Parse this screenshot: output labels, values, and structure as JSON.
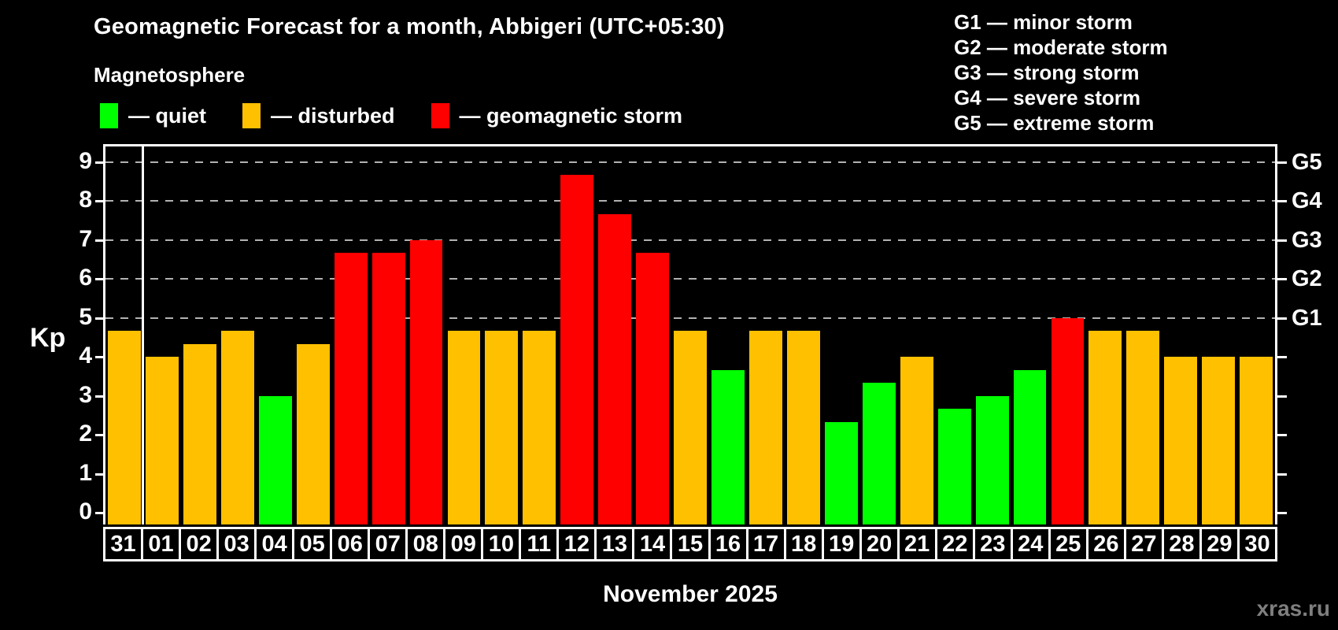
{
  "title": "Geomagnetic Forecast for a month, Abbigeri (UTC+05:30)",
  "subtitle": "Magnetosphere",
  "legend": {
    "items": [
      {
        "label": "— quiet",
        "status": "quiet"
      },
      {
        "label": "— disturbed",
        "status": "disturbed"
      },
      {
        "label": "— geomagnetic storm",
        "status": "storm"
      }
    ]
  },
  "g_legend": [
    "G1 — minor storm",
    "G2 — moderate storm",
    "G3 — strong storm",
    "G4 — severe storm",
    "G5 — extreme storm"
  ],
  "axes": {
    "y_label": "Kp",
    "y_ticks": [
      0,
      1,
      2,
      3,
      4,
      5,
      6,
      7,
      8,
      9
    ],
    "right_labels": [
      {
        "label": "G1",
        "kp": 5
      },
      {
        "label": "G2",
        "kp": 6
      },
      {
        "label": "G3",
        "kp": 7
      },
      {
        "label": "G4",
        "kp": 8
      },
      {
        "label": "G5",
        "kp": 9
      }
    ],
    "x_label": "November 2025"
  },
  "watermark": "xras.ru",
  "colors": {
    "quiet": "#00ff00",
    "disturbed": "#ffc000",
    "storm": "#ff0000",
    "background": "#000000",
    "frame": "#ffffff",
    "gridline": "#b2b2b2",
    "watermark": "#7f7f7f"
  },
  "chart_data": {
    "type": "bar",
    "title": "Geomagnetic Forecast for a month, Abbigeri (UTC+05:30)",
    "xlabel": "November 2025",
    "ylabel": "Kp",
    "categories": [
      "31",
      "01",
      "02",
      "03",
      "04",
      "05",
      "06",
      "07",
      "08",
      "09",
      "10",
      "11",
      "12",
      "13",
      "14",
      "15",
      "16",
      "17",
      "18",
      "19",
      "20",
      "21",
      "22",
      "23",
      "24",
      "25",
      "26",
      "27",
      "28",
      "29",
      "30"
    ],
    "values": [
      4.67,
      4.0,
      4.33,
      4.67,
      3.0,
      4.33,
      6.67,
      6.67,
      7.0,
      4.67,
      4.67,
      4.67,
      8.67,
      7.67,
      6.67,
      4.67,
      3.67,
      4.67,
      4.67,
      2.33,
      3.33,
      4.0,
      2.67,
      3.0,
      3.67,
      5.0,
      4.67,
      4.67,
      4.0,
      4.0,
      4.0
    ],
    "statuses": [
      "disturbed",
      "disturbed",
      "disturbed",
      "disturbed",
      "quiet",
      "disturbed",
      "storm",
      "storm",
      "storm",
      "disturbed",
      "disturbed",
      "disturbed",
      "storm",
      "storm",
      "storm",
      "disturbed",
      "quiet",
      "disturbed",
      "disturbed",
      "quiet",
      "quiet",
      "disturbed",
      "quiet",
      "quiet",
      "quiet",
      "storm",
      "disturbed",
      "disturbed",
      "disturbed",
      "disturbed",
      "disturbed"
    ],
    "ylim": [
      -0.3,
      9.4
    ],
    "gridlines_at": [
      5,
      6,
      7,
      8,
      9
    ],
    "grid": "dashed horizontal at G-levels only",
    "legend_position": "top-left and top-right",
    "month_separator_after_index": 0
  }
}
